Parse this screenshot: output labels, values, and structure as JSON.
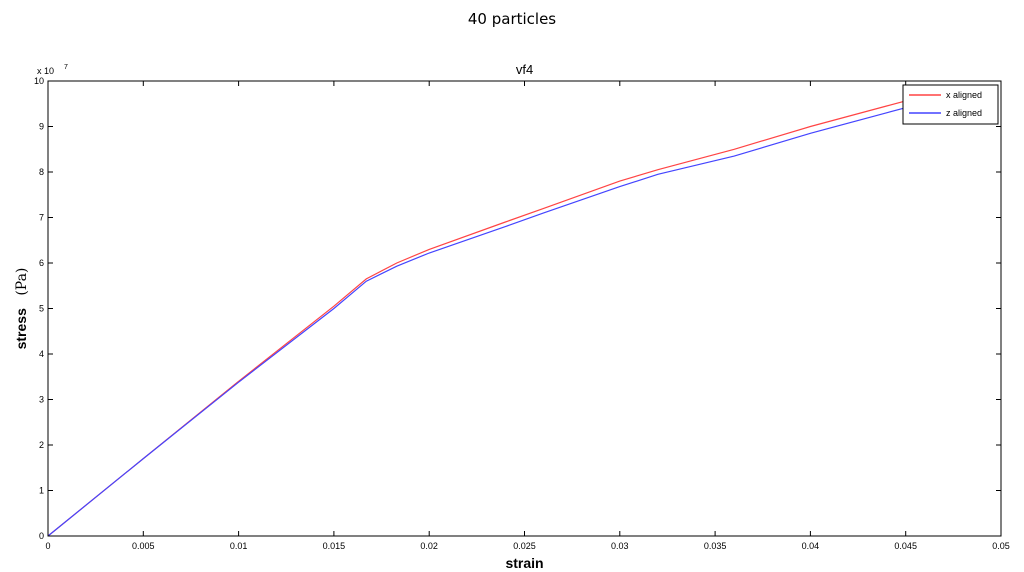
{
  "figure": {
    "suptitle": "40  particles"
  },
  "chart_data": {
    "type": "line",
    "title": "vf4",
    "xlabel": "strain",
    "ylabel": "stress",
    "ylabel_unit": "(Pa)",
    "y_exponent_base": "x 10",
    "y_exponent_power": "7",
    "xlim": [
      0,
      0.05
    ],
    "ylim": [
      0,
      10
    ],
    "x_ticks": [
      0,
      0.005,
      0.01,
      0.015,
      0.02,
      0.025,
      0.03,
      0.035,
      0.04,
      0.045,
      0.05
    ],
    "x_tick_labels": [
      "0",
      "0.005",
      "0.01",
      "0.015",
      "0.02",
      "0.025",
      "0.03",
      "0.035",
      "0.04",
      "0.045",
      "0.05"
    ],
    "y_ticks": [
      0,
      1,
      2,
      3,
      4,
      5,
      6,
      7,
      8,
      9,
      10
    ],
    "y_tick_labels": [
      "0",
      "1",
      "2",
      "3",
      "4",
      "5",
      "6",
      "7",
      "8",
      "9",
      "10"
    ],
    "grid": false,
    "legend_position": "top-right",
    "series": [
      {
        "name": "x aligned",
        "color": "#ff4444",
        "x": [
          0,
          0.005,
          0.01,
          0.015,
          0.0167,
          0.0183,
          0.02,
          0.024,
          0.026,
          0.03,
          0.032,
          0.036,
          0.04,
          0.044,
          0.048
        ],
        "y": [
          0,
          1.7,
          3.4,
          5.05,
          5.65,
          6.0,
          6.3,
          6.9,
          7.2,
          7.8,
          8.05,
          8.5,
          9.0,
          9.45,
          9.9
        ]
      },
      {
        "name": "z aligned",
        "color": "#4444ff",
        "x": [
          0,
          0.005,
          0.01,
          0.015,
          0.0167,
          0.0183,
          0.02,
          0.024,
          0.026,
          0.03,
          0.032,
          0.036,
          0.04,
          0.044,
          0.048
        ],
        "y": [
          0,
          1.7,
          3.38,
          5.0,
          5.6,
          5.93,
          6.22,
          6.8,
          7.1,
          7.68,
          7.95,
          8.35,
          8.85,
          9.3,
          9.75
        ]
      }
    ]
  }
}
